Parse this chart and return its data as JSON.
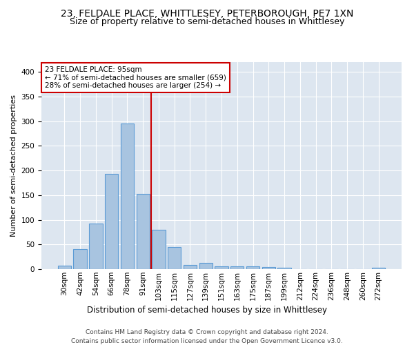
{
  "title": "23, FELDALE PLACE, WHITTLESEY, PETERBOROUGH, PE7 1XN",
  "subtitle": "Size of property relative to semi-detached houses in Whittlesey",
  "xlabel": "Distribution of semi-detached houses by size in Whittlesey",
  "ylabel": "Number of semi-detached properties",
  "categories": [
    "30sqm",
    "42sqm",
    "54sqm",
    "66sqm",
    "78sqm",
    "91sqm",
    "103sqm",
    "115sqm",
    "127sqm",
    "139sqm",
    "151sqm",
    "163sqm",
    "175sqm",
    "187sqm",
    "199sqm",
    "212sqm",
    "224sqm",
    "236sqm",
    "248sqm",
    "260sqm",
    "272sqm"
  ],
  "values": [
    7,
    40,
    93,
    193,
    295,
    152,
    80,
    45,
    9,
    12,
    5,
    6,
    5,
    4,
    3,
    0,
    0,
    0,
    0,
    0,
    3
  ],
  "bar_color": "#a8c4e0",
  "bar_edge_color": "#5b9bd5",
  "vline_x": 5.5,
  "vline_color": "#cc0000",
  "annotation_line1": "23 FELDALE PLACE: 95sqm",
  "annotation_line2": "← 71% of semi-detached houses are smaller (659)",
  "annotation_line3": "28% of semi-detached houses are larger (254) →",
  "annotation_box_color": "#ffffff",
  "annotation_box_edge": "#cc0000",
  "ylim": [
    0,
    420
  ],
  "yticks": [
    0,
    50,
    100,
    150,
    200,
    250,
    300,
    350,
    400
  ],
  "background_color": "#dde6f0",
  "footer_line1": "Contains HM Land Registry data © Crown copyright and database right 2024.",
  "footer_line2": "Contains public sector information licensed under the Open Government Licence v3.0.",
  "title_fontsize": 10,
  "subtitle_fontsize": 9,
  "xlabel_fontsize": 8.5,
  "ylabel_fontsize": 8,
  "tick_fontsize": 7.5,
  "annotation_fontsize": 7.5,
  "footer_fontsize": 6.5
}
